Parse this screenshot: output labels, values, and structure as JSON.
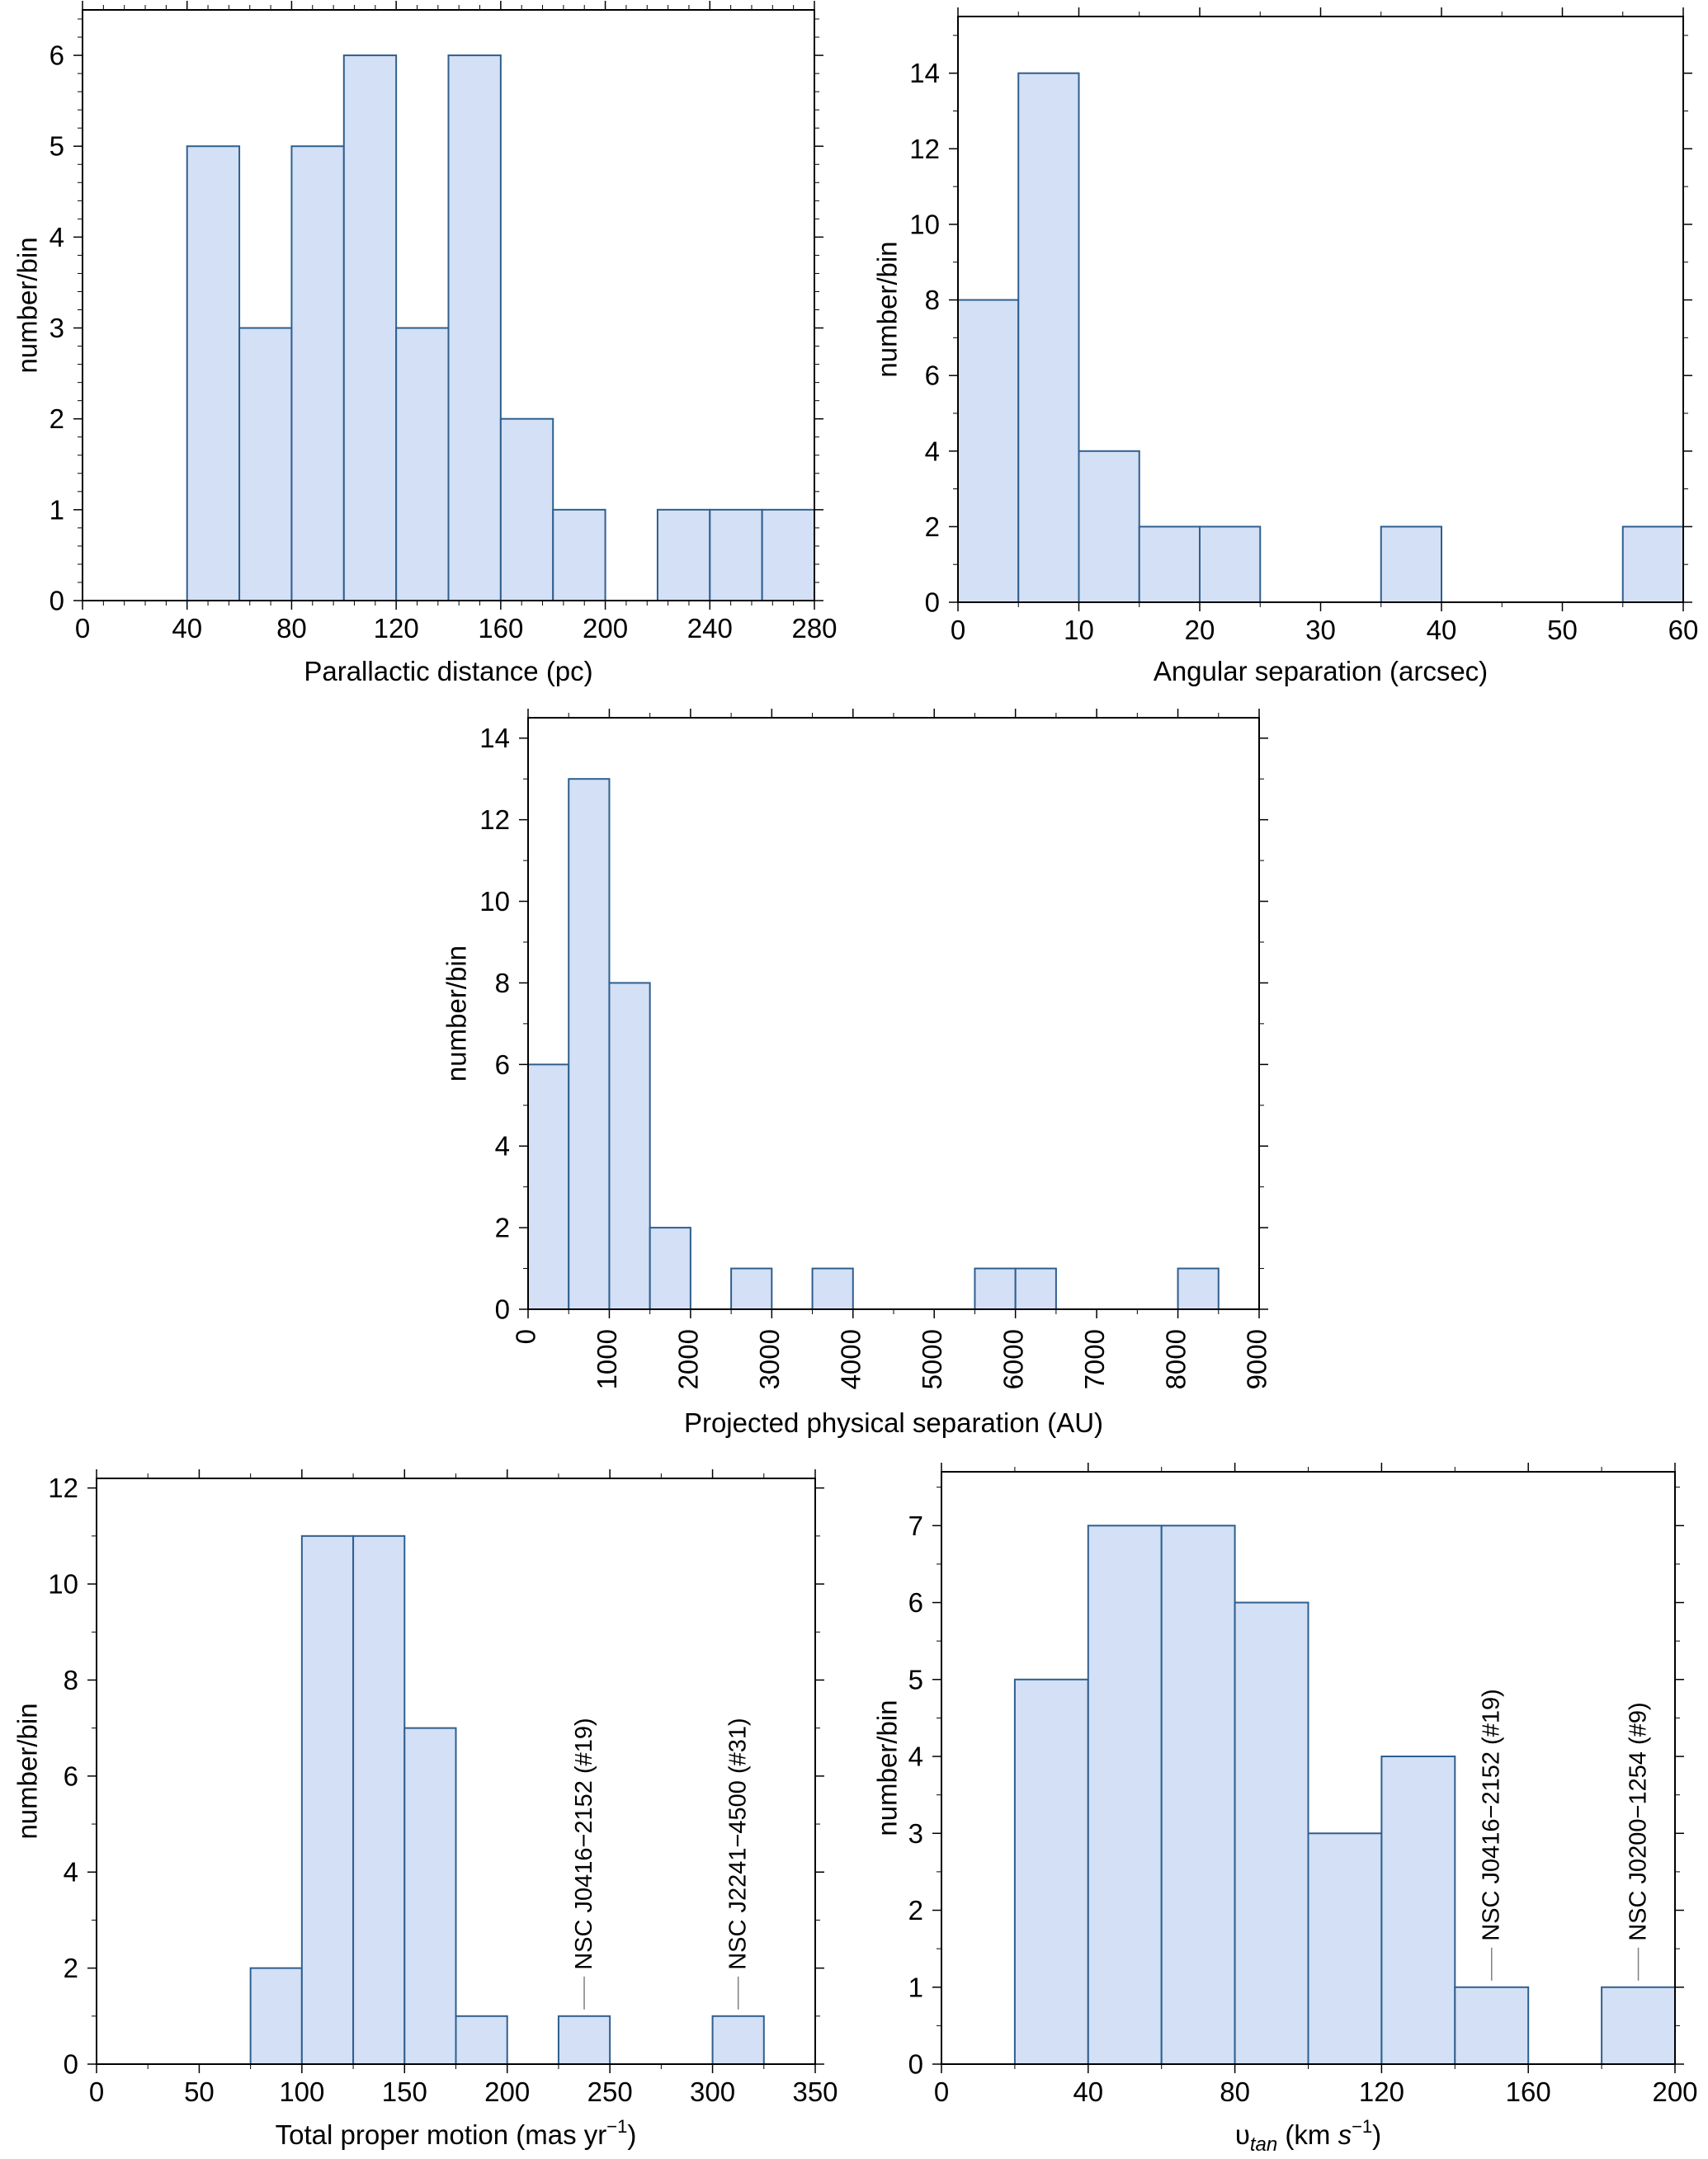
{
  "chart_data": [
    {
      "id": "distance",
      "type": "bar",
      "title": "",
      "xlabel": "Parallactic distance (pc)",
      "ylabel": "number/bin",
      "bin_edges": [
        40,
        60,
        80,
        100,
        120,
        140,
        160,
        180,
        200,
        220,
        240,
        260,
        280
      ],
      "values": [
        5,
        3,
        5,
        6,
        3,
        6,
        2,
        1,
        0,
        1,
        1,
        1
      ],
      "xlim": [
        0,
        280
      ],
      "ylim": [
        0,
        6.5
      ],
      "xticks": [
        "0",
        "40",
        "80",
        "120",
        "160",
        "200",
        "240",
        "280"
      ],
      "yticks": [
        "0",
        "1",
        "2",
        "3",
        "4",
        "5",
        "6"
      ],
      "annotations": []
    },
    {
      "id": "angular",
      "type": "bar",
      "title": "",
      "xlabel": "Angular separation (arcsec)",
      "ylabel": "number/bin",
      "bin_edges": [
        0,
        5,
        10,
        15,
        20,
        25,
        30,
        35,
        40,
        45,
        50,
        55,
        60
      ],
      "values": [
        8,
        14,
        4,
        2,
        2,
        0,
        0,
        2,
        0,
        0,
        0,
        2
      ],
      "xlim": [
        0,
        60
      ],
      "ylim": [
        0,
        15.5
      ],
      "xticks": [
        "0",
        "10",
        "20",
        "30",
        "40",
        "50",
        "60"
      ],
      "yticks": [
        "0",
        "2",
        "4",
        "6",
        "8",
        "10",
        "12",
        "14"
      ],
      "annotations": []
    },
    {
      "id": "projected",
      "type": "bar",
      "title": "",
      "xlabel": "Projected physical separation (AU)",
      "ylabel": "number/bin",
      "bin_edges": [
        0,
        500,
        1000,
        1500,
        2000,
        2500,
        3000,
        3500,
        4000,
        4500,
        5000,
        5500,
        6000,
        6500,
        7000,
        7500,
        8000,
        8500
      ],
      "values": [
        6,
        13,
        8,
        2,
        0,
        1,
        0,
        1,
        0,
        0,
        0,
        1,
        1,
        0,
        0,
        0,
        1
      ],
      "xlim": [
        0,
        9000
      ],
      "ylim": [
        0,
        14.5
      ],
      "xticks": [
        "0",
        "1000",
        "2000",
        "3000",
        "4000",
        "5000",
        "6000",
        "7000",
        "8000",
        "9000"
      ],
      "yticks": [
        "0",
        "2",
        "4",
        "6",
        "8",
        "10",
        "12",
        "14"
      ],
      "annotations": []
    },
    {
      "id": "propermotion",
      "type": "bar",
      "title": "",
      "xlabel": "Total proper motion (mas yr",
      "xlabel_sup": "−1",
      "xlabel_tail": ")",
      "ylabel": "number/bin",
      "bin_edges": [
        75,
        100,
        125,
        150,
        175,
        200,
        225,
        250,
        275,
        300,
        325
      ],
      "values": [
        2,
        11,
        11,
        7,
        1,
        0,
        1,
        0,
        0,
        1
      ],
      "xlim": [
        0,
        350
      ],
      "ylim": [
        0,
        12.2
      ],
      "xticks": [
        "0",
        "50",
        "100",
        "150",
        "200",
        "250",
        "300",
        "350"
      ],
      "yticks": [
        "0",
        "2",
        "4",
        "6",
        "8",
        "10",
        "12"
      ],
      "annotations": [
        {
          "x": 237.5,
          "y": 1,
          "text": "NSC J0416−2152 (#19)"
        },
        {
          "x": 312.5,
          "y": 1,
          "text": "NSC J2241−4500 (#31)"
        }
      ]
    },
    {
      "id": "vtan",
      "type": "bar",
      "title": "",
      "xlabel": "υ",
      "xlabel_sub": "tan",
      "xlabel_mid": " (km ",
      "xlabel_s": "s",
      "xlabel_sup": "−1",
      "xlabel_tail": ")",
      "ylabel": "number/bin",
      "bin_edges": [
        20,
        40,
        60,
        80,
        100,
        120,
        140,
        160,
        180,
        200
      ],
      "values": [
        5,
        7,
        7,
        6,
        3,
        4,
        1,
        0,
        1
      ],
      "xlim": [
        0,
        200
      ],
      "ylim": [
        0,
        7.7
      ],
      "xticks": [
        "0",
        "40",
        "80",
        "120",
        "160",
        "200"
      ],
      "yticks": [
        "0",
        "1",
        "2",
        "3",
        "4",
        "5",
        "6",
        "7"
      ],
      "annotations": [
        {
          "x": 150,
          "y": 1,
          "text": "NSC J0416−2152 (#19)"
        },
        {
          "x": 190,
          "y": 1,
          "text": "NSC J0200−1254 (#9)"
        }
      ]
    }
  ],
  "style": {
    "bar_fill": "#d3e0f5",
    "bar_stroke": "#2f5f8f",
    "axis_color": "#000000",
    "annot_line": "#808080"
  }
}
